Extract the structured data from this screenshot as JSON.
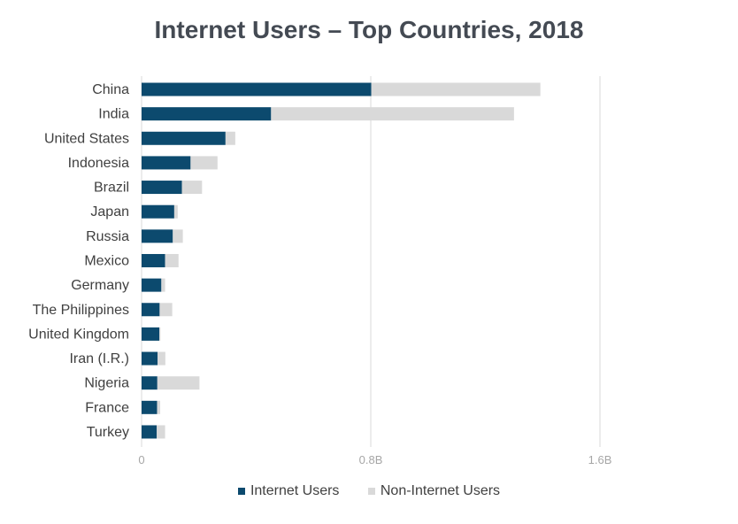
{
  "chart_data": {
    "type": "bar",
    "orientation": "horizontal",
    "stacked": true,
    "title": "Internet Users – Top Countries, 2018",
    "xlabel": "",
    "ylabel": "",
    "categories": [
      "China",
      "India",
      "United States",
      "Indonesia",
      "Brazil",
      "Japan",
      "Russia",
      "Mexico",
      "Germany",
      "The Philippines",
      "United Kingdom",
      "Iran (I.R.)",
      "Nigeria",
      "France",
      "Turkey"
    ],
    "series": [
      {
        "name": "Internet Users",
        "color": "#0c4a6e",
        "values": [
          0.802,
          0.452,
          0.293,
          0.171,
          0.141,
          0.114,
          0.109,
          0.082,
          0.069,
          0.063,
          0.062,
          0.056,
          0.055,
          0.054,
          0.053
        ]
      },
      {
        "name": "Non-Internet Users",
        "color": "#d9d9d9",
        "values": [
          0.59,
          0.848,
          0.034,
          0.094,
          0.07,
          0.012,
          0.035,
          0.047,
          0.013,
          0.044,
          0.004,
          0.027,
          0.147,
          0.011,
          0.029
        ]
      }
    ],
    "xlim": [
      0,
      1.6
    ],
    "xticks": [
      0,
      0.8,
      1.6
    ],
    "xtick_labels": [
      "0",
      "0.8B",
      "1.6B"
    ],
    "grid": true,
    "legend_position": "bottom"
  }
}
